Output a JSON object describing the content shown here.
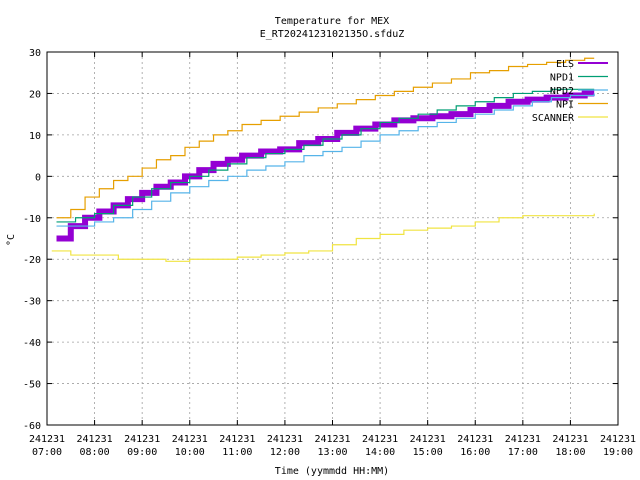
{
  "chart_data": {
    "type": "line",
    "title": "Temperature for MEX",
    "subtitle": "E_RT2024123102135O.sfduZ",
    "xlabel": "Time (yymmdd HH:MM)",
    "ylabel": "°C",
    "ylim": [
      -60,
      30
    ],
    "xlim": [
      7,
      19
    ],
    "yticks": [
      -60,
      -50,
      -40,
      -30,
      -20,
      -10,
      0,
      10,
      20,
      30
    ],
    "ytick_labels": [
      "-60",
      "-50",
      "-40",
      "-30",
      "-20",
      "-10",
      "0",
      "10",
      "20",
      "30"
    ],
    "xticks": [
      7,
      8,
      9,
      10,
      11,
      12,
      13,
      14,
      15,
      16,
      17,
      18,
      19
    ],
    "xtick_dates": [
      "241231",
      "241231",
      "241231",
      "241231",
      "241231",
      "241231",
      "241231",
      "241231",
      "241231",
      "241231",
      "241231",
      "241231",
      "241231"
    ],
    "xtick_times": [
      "07:00",
      "08:00",
      "09:00",
      "10:00",
      "11:00",
      "12:00",
      "13:00",
      "14:00",
      "15:00",
      "16:00",
      "17:00",
      "18:00",
      "19:00"
    ],
    "grid": true,
    "legend": "top-right",
    "series": [
      {
        "name": "ELS",
        "color": "#9400d3",
        "width": 6,
        "x": [
          7.2,
          7.5,
          7.8,
          8.1,
          8.4,
          8.7,
          9.0,
          9.3,
          9.6,
          9.9,
          10.2,
          10.5,
          10.8,
          11.1,
          11.5,
          11.9,
          12.3,
          12.7,
          13.1,
          13.5,
          13.9,
          14.3,
          14.7,
          15.1,
          15.5,
          15.9,
          16.3,
          16.7,
          17.1,
          17.5,
          17.9,
          18.3,
          18.5
        ],
        "y": [
          -15,
          -12,
          -10,
          -8.5,
          -7,
          -5.5,
          -4,
          -2.5,
          -1.5,
          0,
          1.5,
          3,
          4,
          5,
          6,
          6.5,
          8,
          9,
          10.5,
          11.5,
          12.5,
          13.5,
          14,
          14.5,
          15,
          16,
          17,
          18,
          18.5,
          19,
          19.5,
          20,
          20
        ]
      },
      {
        "name": "NPD1",
        "color": "#009e73",
        "width": 1.2,
        "x": [
          7.2,
          7.6,
          8.0,
          8.4,
          8.8,
          9.2,
          9.6,
          10.0,
          10.4,
          10.8,
          11.2,
          11.6,
          12.0,
          12.4,
          12.8,
          13.2,
          13.6,
          14.0,
          14.4,
          14.8,
          15.2,
          15.6,
          16.0,
          16.4,
          16.8,
          17.2,
          17.6,
          18.0,
          18.5
        ],
        "y": [
          -11,
          -10,
          -9,
          -7,
          -5,
          -3,
          -1.5,
          0,
          1.5,
          3,
          4.5,
          5.5,
          6.5,
          7.5,
          9,
          10,
          11.5,
          13,
          14,
          15,
          16,
          17,
          18,
          19,
          20,
          20.5,
          21,
          21,
          21
        ]
      },
      {
        "name": "NPD2",
        "color": "#56b4e9",
        "width": 1.2,
        "x": [
          7.2,
          7.6,
          8.0,
          8.4,
          8.8,
          9.2,
          9.6,
          10.0,
          10.4,
          10.8,
          11.2,
          11.6,
          12.0,
          12.4,
          12.8,
          13.2,
          13.6,
          14.0,
          14.4,
          14.8,
          15.2,
          15.6,
          16.0,
          16.4,
          16.8,
          17.2,
          17.6,
          18.0,
          18.5
        ],
        "y": [
          -12,
          -12,
          -11,
          -10,
          -8,
          -6,
          -4,
          -2.5,
          -1,
          0,
          1.5,
          2.5,
          3.5,
          5,
          6,
          7,
          8.5,
          10,
          11,
          12,
          13,
          14,
          15,
          16,
          17,
          18,
          19,
          19.5,
          20
        ]
      },
      {
        "name": "NPI",
        "color": "#e69f00",
        "width": 1.2,
        "x": [
          7.2,
          7.5,
          7.8,
          8.1,
          8.4,
          8.7,
          9.0,
          9.3,
          9.6,
          9.9,
          10.2,
          10.5,
          10.8,
          11.1,
          11.5,
          11.9,
          12.3,
          12.7,
          13.1,
          13.5,
          13.9,
          14.3,
          14.7,
          15.1,
          15.5,
          15.9,
          16.3,
          16.7,
          17.1,
          17.5,
          17.9,
          18.3,
          18.5
        ],
        "y": [
          -10,
          -8,
          -5,
          -3,
          -1,
          0,
          2,
          4,
          5,
          7,
          8.5,
          10,
          11,
          12.5,
          13.5,
          14.5,
          15.5,
          16.5,
          17.5,
          18.5,
          19.5,
          20.5,
          21.5,
          22.5,
          23.5,
          25,
          25.5,
          26.5,
          27,
          27.5,
          28,
          28.5,
          28.5
        ]
      },
      {
        "name": "SCANNER",
        "color": "#f0e442",
        "width": 1.2,
        "x": [
          7.1,
          7.5,
          8.0,
          8.5,
          9.0,
          9.5,
          10.0,
          10.5,
          11.0,
          11.5,
          12.0,
          12.5,
          13.0,
          13.5,
          14.0,
          14.5,
          15.0,
          15.5,
          16.0,
          16.5,
          17.0,
          17.5,
          18.0,
          18.5
        ],
        "y": [
          -18,
          -19,
          -19,
          -20,
          -20,
          -20.5,
          -20,
          -20,
          -19.5,
          -19,
          -18.5,
          -18,
          -16.5,
          -15,
          -14,
          -13,
          -12.5,
          -12,
          -11,
          -10,
          -9.5,
          -9.5,
          -9.5,
          -9
        ]
      }
    ]
  }
}
